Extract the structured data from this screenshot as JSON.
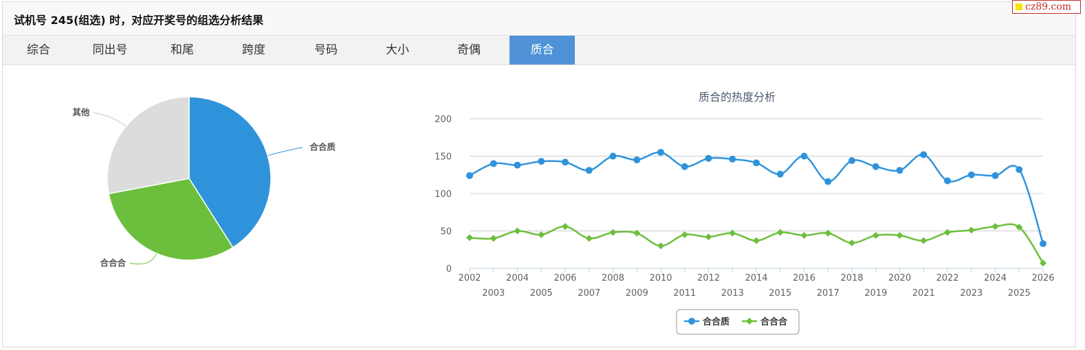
{
  "title": "试机号 245(组选) 时，对应开奖号的组选分析结果",
  "brand": "cz89.com",
  "tabs": [
    "综合",
    "同出号",
    "和尾",
    "跨度",
    "号码",
    "大小",
    "奇偶",
    "质合"
  ],
  "active_tab": "质合",
  "colors": {
    "blue": "#2f93dc",
    "green": "#6cbf3c",
    "gray": "#dcdcdc",
    "tab_active": "#4f92d8"
  },
  "chart_data": [
    {
      "type": "pie",
      "slices": [
        {
          "label": "合合质",
          "value": 41,
          "color": "#2f93dc"
        },
        {
          "label": "合合合",
          "value": 31,
          "color": "#6cbf3c"
        },
        {
          "label": "其他",
          "value": 28,
          "color": "#dcdcdc"
        }
      ]
    },
    {
      "type": "line",
      "title": "质合的热度分析",
      "x": [
        "2002",
        "2003",
        "2004",
        "2005",
        "2006",
        "2007",
        "2008",
        "2009",
        "2010",
        "2011",
        "2012",
        "2013",
        "2014",
        "2015",
        "2016",
        "2017",
        "2018",
        "2019",
        "2020",
        "2021",
        "2022",
        "2023",
        "2024",
        "2025",
        "2026"
      ],
      "ylim": [
        0,
        200
      ],
      "yticks": [
        0,
        50,
        100,
        150,
        200
      ],
      "grid": true,
      "legend": "bottom-center",
      "series": [
        {
          "name": "合合质",
          "color": "#2f93dc",
          "marker": "circle",
          "values": [
            124,
            140,
            138,
            143,
            142,
            131,
            150,
            145,
            155,
            136,
            147,
            146,
            141,
            126,
            150,
            116,
            144,
            136,
            131,
            152,
            117,
            125,
            124,
            132,
            33
          ]
        },
        {
          "name": "合合合",
          "color": "#6cbf3c",
          "marker": "diamond",
          "values": [
            41,
            40,
            50,
            45,
            56,
            40,
            48,
            47,
            30,
            45,
            42,
            47,
            37,
            48,
            44,
            47,
            34,
            44,
            44,
            37,
            48,
            51,
            56,
            55,
            7
          ]
        }
      ]
    }
  ]
}
